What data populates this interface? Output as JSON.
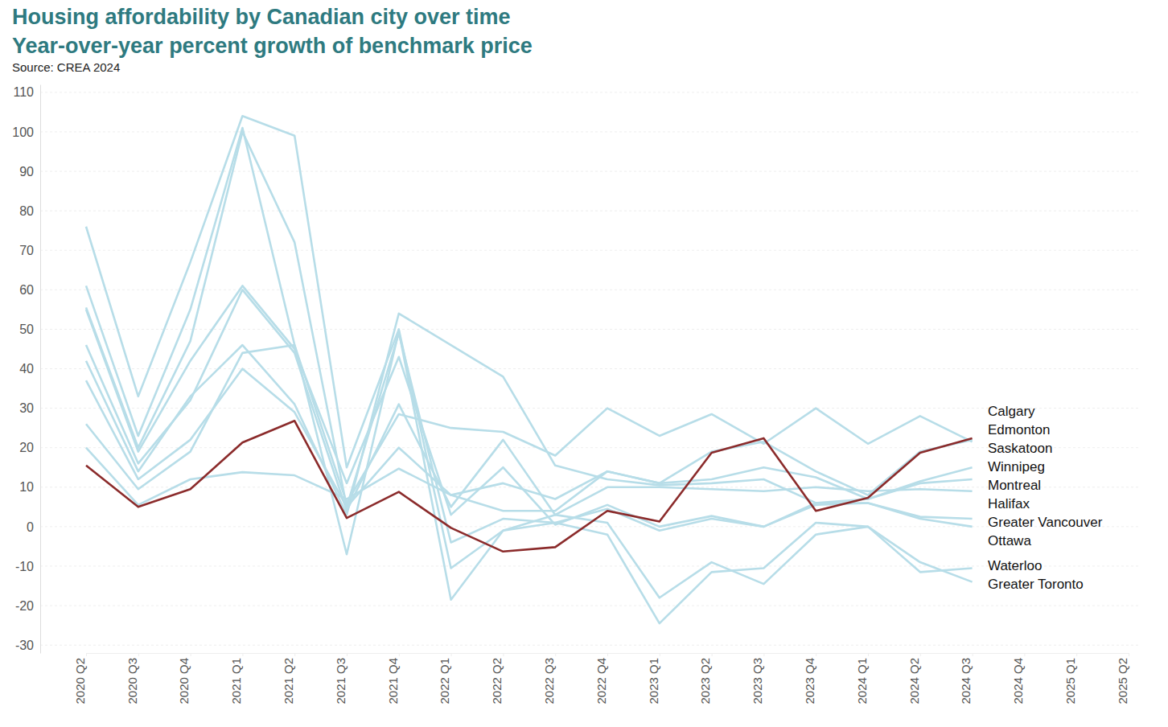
{
  "chart_data": {
    "type": "line",
    "title": "Housing affordability by Canadian city over time",
    "subtitle": "Year-over-year percent growth of benchmark price",
    "source": "Source: CREA 2024",
    "categories": [
      "2020 Q2",
      "2020 Q3",
      "2020 Q4",
      "2021 Q1",
      "2021 Q2",
      "2021 Q3",
      "2021 Q4",
      "2022 Q1",
      "2022 Q2",
      "2022 Q3",
      "2022 Q4",
      "2023 Q1",
      "2023 Q2",
      "2023 Q3",
      "2023 Q4",
      "2024 Q1",
      "2024 Q2",
      "2024 Q3",
      "2024 Q4",
      "2025 Q1",
      "2025 Q2"
    ],
    "ylim": [
      -32,
      112
    ],
    "yticks": [
      -30,
      -20,
      -10,
      0,
      10,
      20,
      30,
      40,
      50,
      60,
      70,
      80,
      90,
      100,
      110
    ],
    "grid": true,
    "series": [
      {
        "name": "Edmonton",
        "color": "#b7dde8",
        "values": [
          37,
          12,
          22,
          40,
          29,
          5,
          20,
          8,
          4,
          4,
          14,
          11,
          19,
          21.5,
          14,
          8,
          19,
          22,
          null,
          null,
          null
        ]
      },
      {
        "name": "Saskatoon",
        "color": "#b7dde8",
        "values": [
          26,
          9.5,
          19,
          44,
          46,
          6,
          28.5,
          25,
          24,
          18,
          30,
          23,
          28.5,
          21,
          30,
          21,
          28,
          21.5,
          null,
          null,
          null
        ]
      },
      {
        "name": "Winnipeg",
        "color": "#b7dde8",
        "values": [
          20,
          5.5,
          12,
          13.8,
          13,
          7,
          14.7,
          8,
          11,
          7,
          14,
          11,
          12,
          15,
          12.5,
          7,
          11.5,
          15,
          null,
          null,
          null
        ]
      },
      {
        "name": "Montreal",
        "color": "#b7dde8",
        "values": [
          42,
          14,
          33,
          46,
          31,
          3,
          54,
          46,
          38,
          15.5,
          12,
          10.5,
          11,
          12,
          6,
          7,
          11,
          12,
          null,
          null,
          null
        ]
      },
      {
        "name": "Halifax",
        "color": "#b7dde8",
        "values": [
          46,
          16,
          32,
          60,
          44,
          4,
          31,
          5,
          22,
          3,
          10,
          10,
          9.5,
          9,
          10,
          9,
          9.5,
          9,
          null,
          null,
          null
        ]
      },
      {
        "name": "Greater Vancouver",
        "color": "#b7dde8",
        "values": [
          55,
          19,
          42,
          61,
          45,
          11,
          43,
          3,
          15,
          0.5,
          5.5,
          0,
          2.7,
          0,
          5.5,
          6,
          2.5,
          2,
          null,
          null,
          null
        ]
      },
      {
        "name": "Ottawa",
        "color": "#b7dde8",
        "values": [
          55.5,
          20,
          47,
          100,
          72,
          5,
          49,
          -4,
          2,
          1,
          4.5,
          -1,
          2,
          0,
          6,
          6,
          2,
          0,
          null,
          null,
          null
        ]
      },
      {
        "name": "Waterloo",
        "color": "#b7dde8",
        "values": [
          76,
          33,
          67,
          104,
          99,
          15,
          50,
          -10.5,
          -1,
          3,
          1,
          -18,
          -9,
          -14.5,
          -2,
          0,
          -11.5,
          -10.5,
          null,
          null,
          null
        ]
      },
      {
        "name": "Greater Toronto",
        "color": "#b7dde8",
        "values": [
          61,
          23,
          55,
          101,
          46,
          -7,
          49.5,
          -18.5,
          -1,
          1,
          -2,
          -24.5,
          -11.5,
          -10.5,
          1,
          0,
          -9,
          -14,
          null,
          null,
          null
        ]
      },
      {
        "name": "Calgary",
        "color": "#8b2b2b",
        "values": [
          15.5,
          5,
          9.5,
          21.3,
          26.8,
          2.2,
          8.8,
          -0.3,
          -6.3,
          -5.2,
          4,
          1.3,
          18.7,
          22.4,
          4,
          7.3,
          18.7,
          22.4,
          null,
          null,
          null
        ]
      }
    ]
  }
}
